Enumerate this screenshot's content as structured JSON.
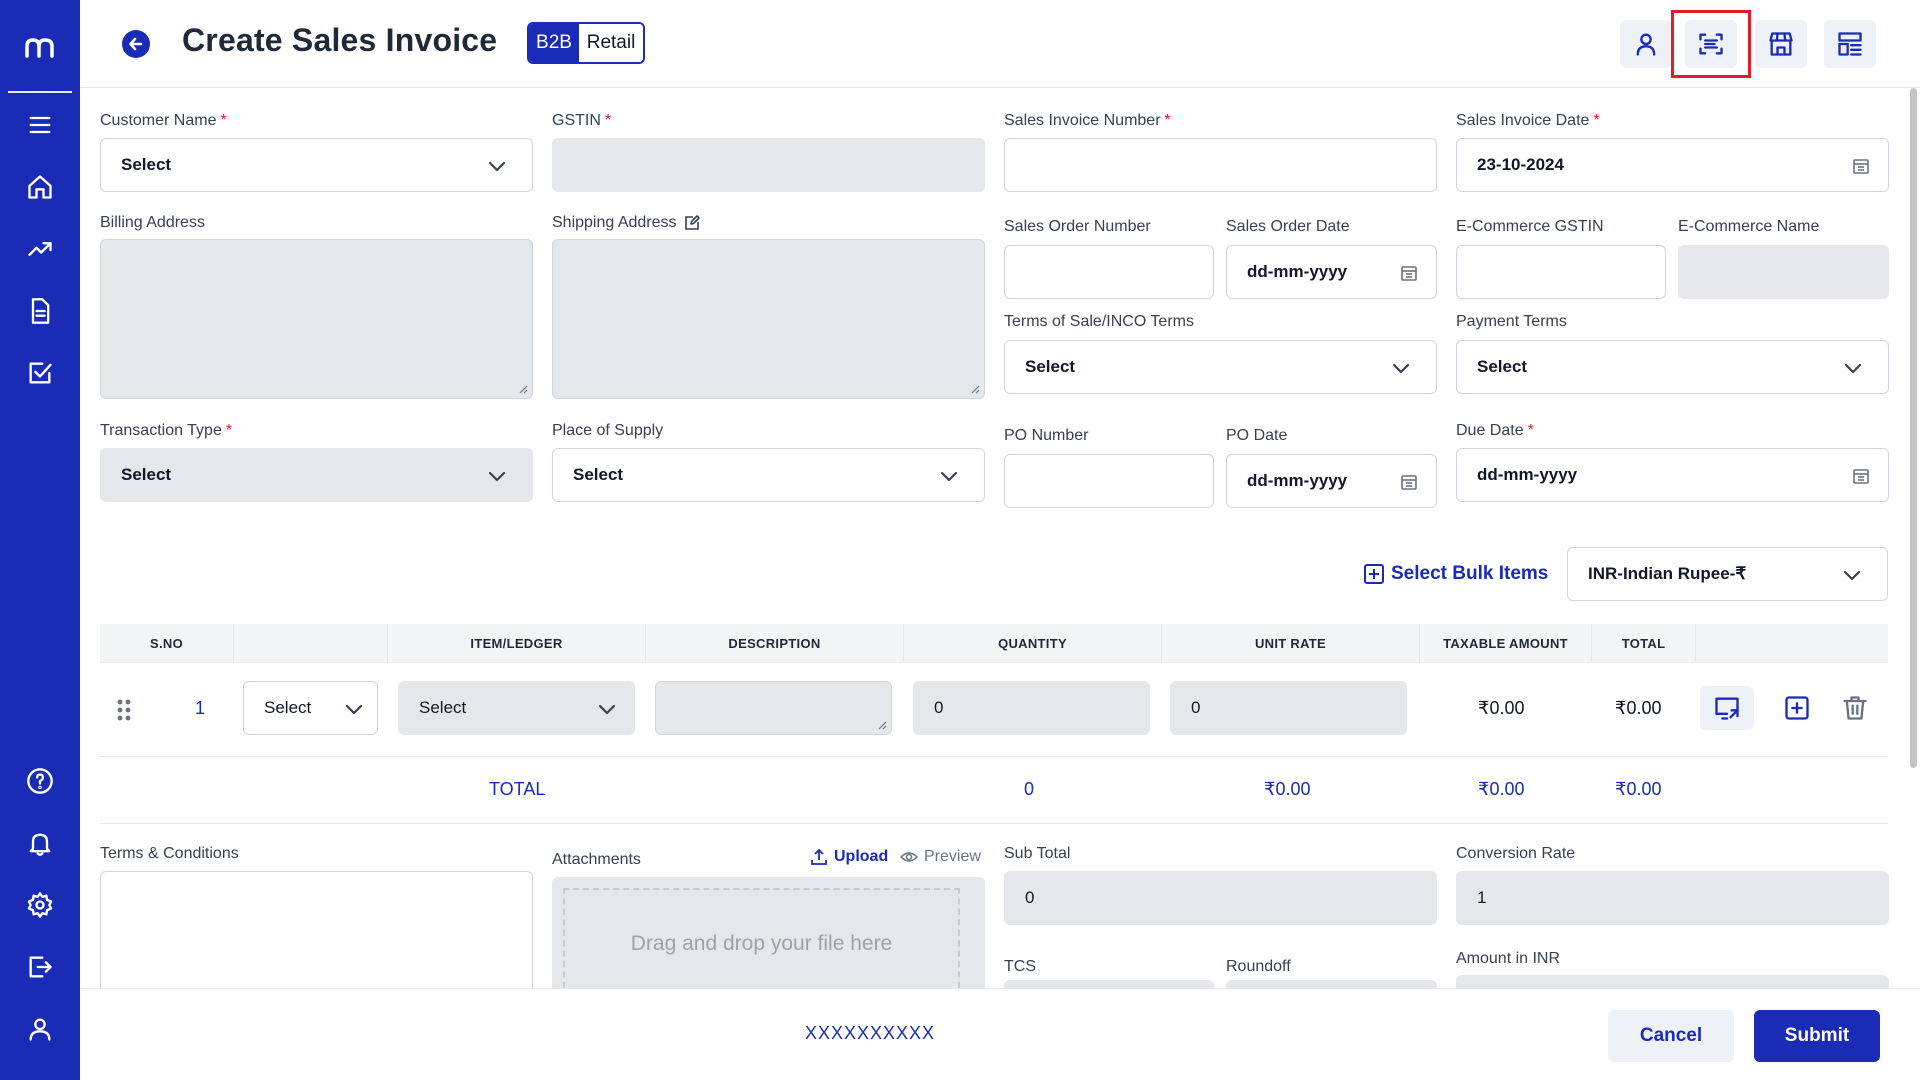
{
  "header": {
    "title": "Create Sales Invoice",
    "toggle": {
      "b2b": "B2B",
      "retail": "Retail"
    }
  },
  "form": {
    "customer_name": {
      "label": "Customer Name",
      "value": "Select"
    },
    "gstin": {
      "label": "GSTIN"
    },
    "sales_invoice_number": {
      "label": "Sales Invoice Number"
    },
    "sales_invoice_date": {
      "label": "Sales Invoice Date",
      "value": "23-10-2024"
    },
    "billing_address": {
      "label": "Billing Address"
    },
    "shipping_address": {
      "label": "Shipping Address"
    },
    "sales_order_number": {
      "label": "Sales Order Number"
    },
    "sales_order_date": {
      "label": "Sales Order Date",
      "value": "dd-mm-yyyy"
    },
    "ecommerce_gstin": {
      "label": "E-Commerce GSTIN"
    },
    "ecommerce_name": {
      "label": "E-Commerce Name"
    },
    "terms_of_sale": {
      "label": "Terms of Sale/INCO Terms",
      "value": "Select"
    },
    "payment_terms": {
      "label": "Payment Terms",
      "value": "Select"
    },
    "transaction_type": {
      "label": "Transaction Type",
      "value": "Select"
    },
    "place_of_supply": {
      "label": "Place of Supply",
      "value": "Select"
    },
    "po_number": {
      "label": "PO Number"
    },
    "po_date": {
      "label": "PO Date",
      "value": "dd-mm-yyyy"
    },
    "due_date": {
      "label": "Due Date",
      "value": "dd-mm-yyyy"
    }
  },
  "items": {
    "bulk_label": "Select Bulk Items",
    "currency": "INR-Indian Rupee-₹",
    "columns": [
      "S.NO",
      "ITEM/LEDGER",
      "DESCRIPTION",
      "QUANTITY",
      "UNIT RATE",
      "TAXABLE AMOUNT",
      "TOTAL"
    ],
    "rows": [
      {
        "sno": "1",
        "type": "Select",
        "item": "Select",
        "quantity": "0",
        "unit_rate": "0",
        "taxable": "₹0.00",
        "total": "₹0.00"
      }
    ],
    "totals": {
      "label": "TOTAL",
      "quantity": "0",
      "unit_rate": "₹0.00",
      "taxable": "₹0.00",
      "total": "₹0.00"
    }
  },
  "bottom": {
    "terms_label": "Terms & Conditions",
    "attachments_label": "Attachments",
    "upload_label": "Upload",
    "preview_label": "Preview",
    "dropzone_text": "Drag and drop your file here",
    "sub_total_label": "Sub Total",
    "sub_total_value": "0",
    "conversion_rate_label": "Conversion Rate",
    "conversion_rate_value": "1",
    "tcs_label": "TCS",
    "roundoff_label": "Roundoff",
    "amount_inr_label": "Amount in INR"
  },
  "footer": {
    "code": "XXXXXXXXXX",
    "cancel": "Cancel",
    "submit": "Submit"
  },
  "colors": {
    "brand": "#1a2bb5",
    "required": "#e11d2a",
    "highlight": "#e11d2a"
  },
  "icons": {
    "sidebar": [
      "logo",
      "menu-icon",
      "home-icon",
      "trending-up-icon",
      "document-icon",
      "checklist-icon",
      "help-icon",
      "bell-icon",
      "settings-icon",
      "logout-icon",
      "user-icon"
    ],
    "header": [
      "user-icon",
      "scan-icon",
      "store-icon",
      "layout-icon"
    ]
  }
}
